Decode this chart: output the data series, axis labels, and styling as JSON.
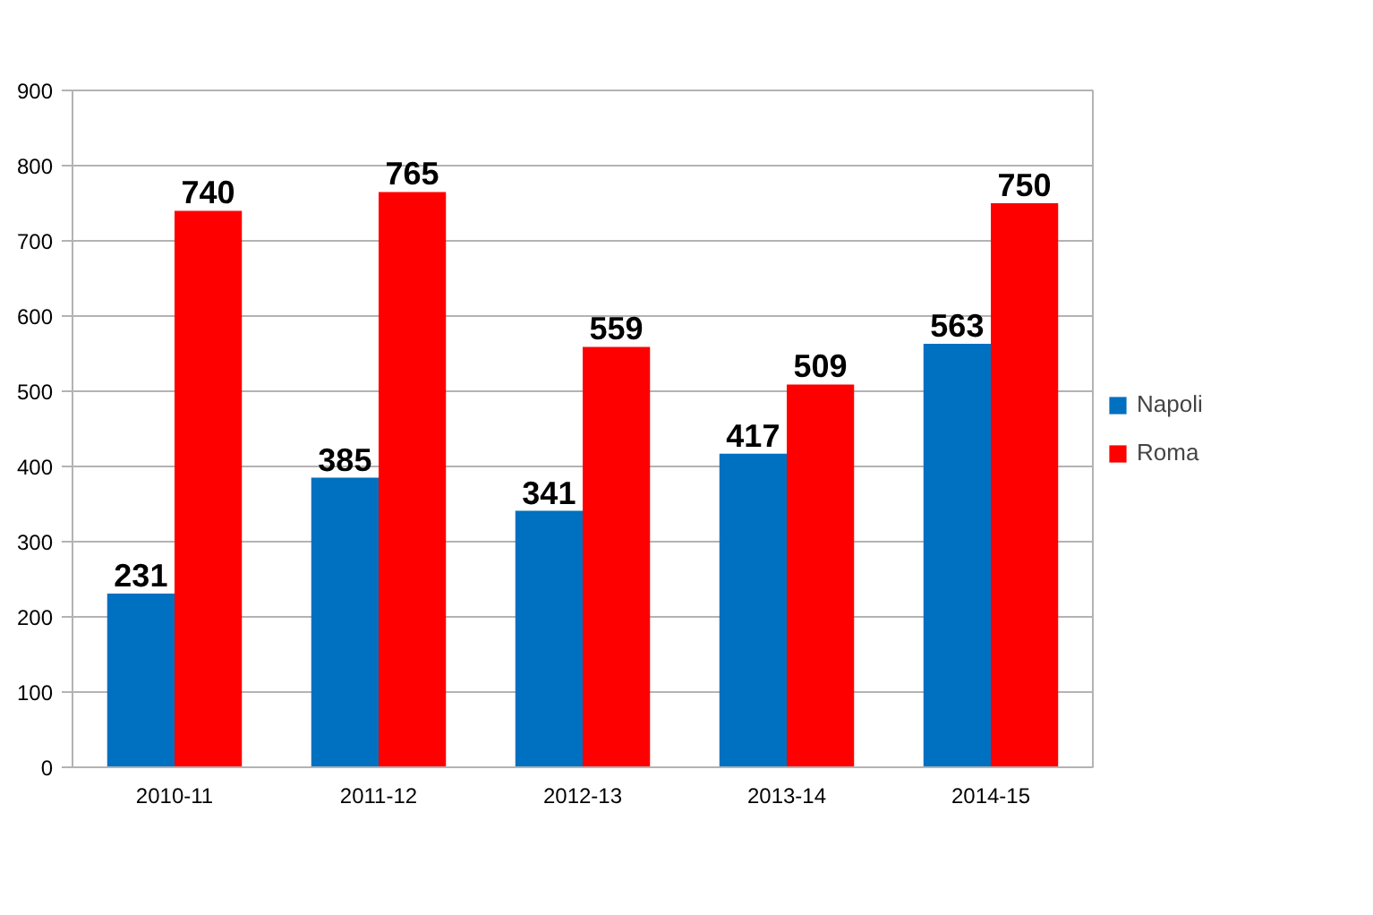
{
  "chart_data": {
    "type": "bar",
    "categories": [
      "2010-11",
      "2011-12",
      "2012-13",
      "2013-14",
      "2014-15"
    ],
    "series": [
      {
        "name": "Napoli",
        "color": "#0070c0",
        "values": [
          231,
          385,
          341,
          417,
          563
        ]
      },
      {
        "name": "Roma",
        "color": "#ff0000",
        "values": [
          740,
          765,
          559,
          509,
          750
        ]
      }
    ],
    "ylim": [
      0,
      900
    ],
    "yticks": [
      0,
      100,
      200,
      300,
      400,
      500,
      600,
      700,
      800,
      900
    ],
    "grid": "y",
    "legend": "right",
    "data_labels": true
  }
}
